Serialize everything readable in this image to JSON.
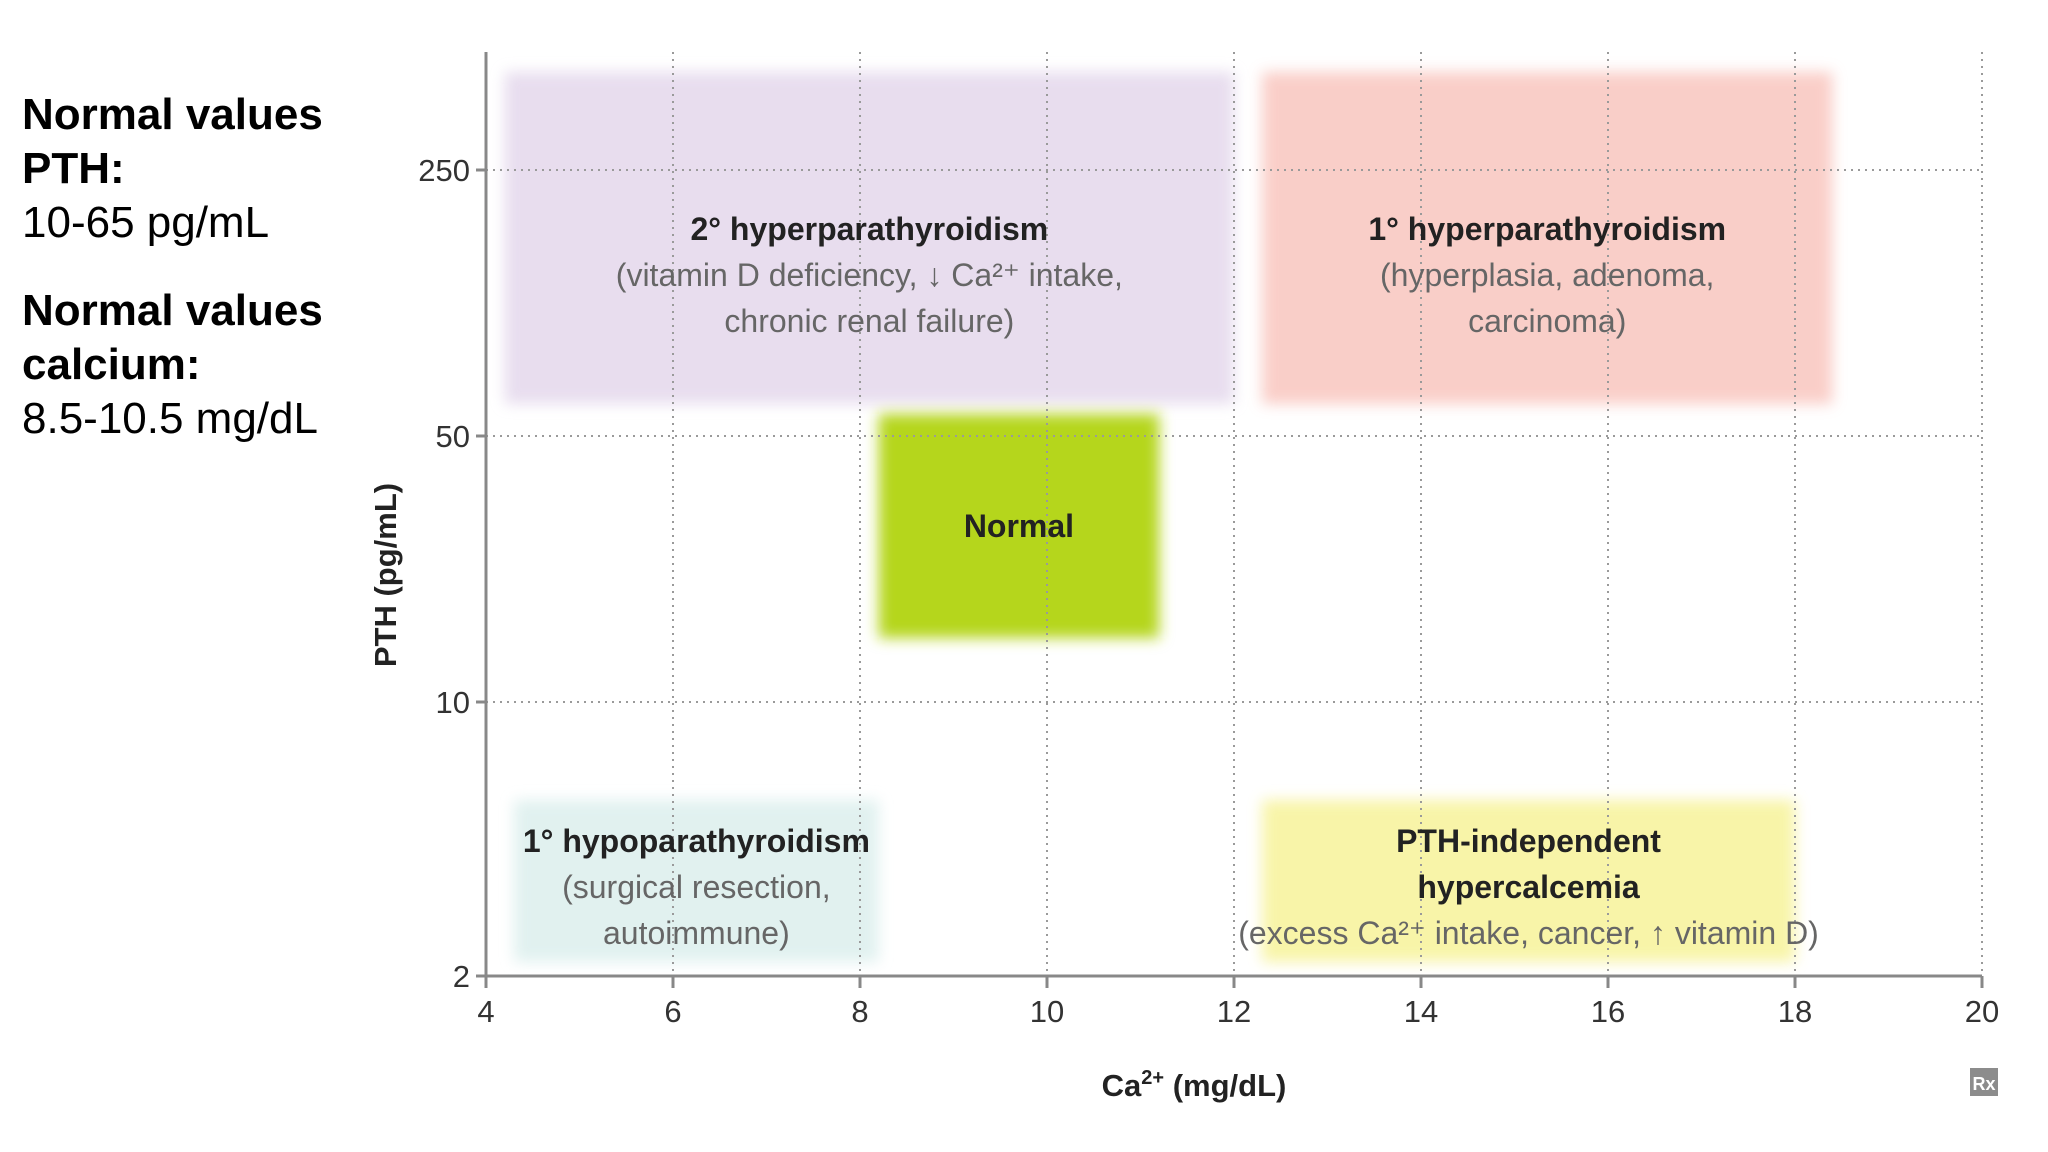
{
  "notes": {
    "pth_heading_1": "Normal values",
    "pth_heading_2": "PTH:",
    "pth_range": "10-65  pg/mL",
    "ca_heading_1": "Normal values",
    "ca_heading_2": "calcium:",
    "ca_range": "8.5-10.5 mg/dL"
  },
  "chart_data": {
    "type": "region-map",
    "xlabel_base": "Ca",
    "xlabel_sup": "2+",
    "xlabel_rest": " (mg/dL)",
    "ylabel": "PTH (pg/mL)",
    "xlim": [
      4,
      20
    ],
    "x_ticks": [
      4,
      6,
      8,
      10,
      12,
      14,
      16,
      18,
      20
    ],
    "y_ticks": [
      "2",
      "10",
      "50",
      "250"
    ],
    "y_scale": "categorical",
    "grid": true,
    "logo": "Rx",
    "regions": [
      {
        "name": "2° hyperparathyroidism",
        "sub": [
          "(vitamin D deficiency, ↓ Ca²⁺ intake,",
          "chronic renal failure)"
        ],
        "x_range": [
          4.2,
          12.0
        ],
        "y_band": "above 50",
        "color": "#e4d8ec"
      },
      {
        "name": "1° hyperparathyroidism",
        "sub": [
          "(hyperplasia, adenoma,",
          "carcinoma)"
        ],
        "x_range": [
          12.3,
          18.4
        ],
        "y_band": "above 50",
        "color": "#f9c6bf"
      },
      {
        "name": "Normal",
        "sub": [],
        "x_range": [
          8.2,
          11.2
        ],
        "y_band": "10-50",
        "color": "#b5d61a"
      },
      {
        "name": "1° hypoparathyroidism",
        "sub": [
          "(surgical resection,",
          "autoimmune)"
        ],
        "x_range": [
          4.3,
          8.2
        ],
        "y_band": "below 10",
        "color": "#dcefed"
      },
      {
        "name": "PTH-independent",
        "name2": "hypercalcemia",
        "sub": [
          "(excess Ca²⁺ intake, cancer, ↑ vitamin D)"
        ],
        "x_range": [
          12.3,
          18.0
        ],
        "y_band": "below 10",
        "color": "#f7f39a"
      }
    ]
  }
}
